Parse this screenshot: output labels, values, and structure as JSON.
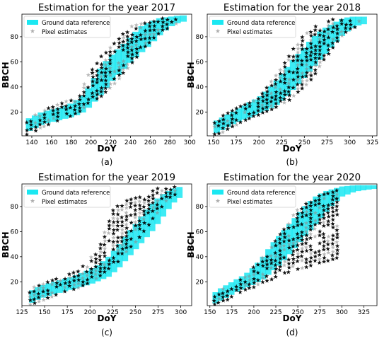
{
  "chart_data": [
    {
      "id": "a",
      "type": "scatter",
      "title": "Estimation for the year 2017",
      "caption": "(a)",
      "xlabel": "DoY",
      "ylabel": "BBCH",
      "xlim": [
        130,
        302
      ],
      "ylim": [
        1,
        98
      ],
      "xticks": [
        140,
        160,
        180,
        200,
        220,
        240,
        260,
        280,
        300
      ],
      "yticks": [
        20,
        40,
        60,
        80
      ],
      "legend_position": "top-left",
      "series": [
        {
          "name": "Ground data reference",
          "color": "#1be8f2",
          "band": [
            [
              134,
              4,
              14
            ],
            [
              140,
              6,
              16
            ],
            [
              150,
              10,
              20
            ],
            [
              160,
              12,
              22
            ],
            [
              170,
              14,
              24
            ],
            [
              180,
              16,
              27
            ],
            [
              190,
              19,
              32
            ],
            [
              198,
              24,
              40
            ],
            [
              205,
              30,
              50
            ],
            [
              212,
              36,
              58
            ],
            [
              220,
              44,
              65
            ],
            [
              230,
              52,
              72
            ],
            [
              240,
              60,
              80
            ],
            [
              250,
              67,
              88
            ],
            [
              260,
              74,
              92
            ],
            [
              270,
              82,
              95
            ],
            [
              280,
              88,
              96
            ],
            [
              290,
              92,
              97
            ]
          ]
        },
        {
          "name": "Pixel estimates",
          "color": "#000000",
          "cloud": [
            [
              135,
              2,
              14
            ],
            [
              142,
              4,
              17
            ],
            [
              150,
              8,
              22
            ],
            [
              160,
              11,
              24
            ],
            [
              170,
              14,
              27
            ],
            [
              180,
              17,
              31
            ],
            [
              190,
              21,
              40
            ],
            [
              197,
              27,
              50
            ],
            [
              205,
              30,
              60
            ],
            [
              213,
              34,
              68
            ],
            [
              220,
              40,
              74
            ],
            [
              230,
              48,
              82
            ],
            [
              240,
              58,
              88
            ],
            [
              250,
              68,
              92
            ],
            [
              260,
              76,
              94
            ],
            [
              270,
              84,
              95
            ],
            [
              280,
              88,
              96
            ],
            [
              290,
              92,
              95
            ]
          ]
        }
      ]
    },
    {
      "id": "b",
      "type": "scatter",
      "title": "Estimation for the year 2018",
      "caption": "(b)",
      "xlabel": "DoY",
      "ylabel": "BBCH",
      "xlim": [
        143,
        330
      ],
      "ylim": [
        1,
        98
      ],
      "xticks": [
        150,
        175,
        200,
        225,
        250,
        275,
        300,
        325
      ],
      "yticks": [
        20,
        40,
        60,
        80
      ],
      "legend_position": "top-left",
      "series": [
        {
          "name": "Ground data reference",
          "color": "#1be8f2",
          "band": [
            [
              150,
              2,
              12
            ],
            [
              160,
              6,
              16
            ],
            [
              170,
              10,
              20
            ],
            [
              180,
              13,
              24
            ],
            [
              190,
              16,
              28
            ],
            [
              200,
              19,
              32
            ],
            [
              210,
              22,
              38
            ],
            [
              220,
              26,
              46
            ],
            [
              230,
              32,
              55
            ],
            [
              240,
              40,
              64
            ],
            [
              250,
              48,
              72
            ],
            [
              260,
              56,
              80
            ],
            [
              270,
              64,
              86
            ],
            [
              280,
              72,
              90
            ],
            [
              290,
              80,
              94
            ],
            [
              300,
              86,
              96
            ],
            [
              312,
              90,
              96
            ]
          ]
        },
        {
          "name": "Pixel estimates",
          "color": "#000000",
          "cloud": [
            [
              151,
              2,
              12
            ],
            [
              160,
              4,
              18
            ],
            [
              170,
              8,
              22
            ],
            [
              180,
              12,
              26
            ],
            [
              190,
              15,
              30
            ],
            [
              200,
              18,
              34
            ],
            [
              210,
              21,
              42
            ],
            [
              220,
              24,
              52
            ],
            [
              230,
              28,
              62
            ],
            [
              240,
              34,
              74
            ],
            [
              250,
              40,
              82
            ],
            [
              260,
              48,
              88
            ],
            [
              270,
              60,
              92
            ],
            [
              280,
              70,
              94
            ],
            [
              290,
              80,
              95
            ],
            [
              300,
              86,
              96
            ],
            [
              312,
              90,
              95
            ]
          ]
        }
      ]
    },
    {
      "id": "c",
      "type": "scatter",
      "title": "Estimation for the year 2019",
      "caption": "(c)",
      "xlabel": "DoY",
      "ylabel": "BBCH",
      "xlim": [
        125,
        312
      ],
      "ylim": [
        1,
        98
      ],
      "xticks": [
        125,
        150,
        175,
        200,
        225,
        250,
        275,
        300
      ],
      "yticks": [
        20,
        40,
        60,
        80
      ],
      "legend_position": "top-left",
      "series": [
        {
          "name": "Ground data reference",
          "color": "#1be8f2",
          "band": [
            [
              133,
              2,
              12
            ],
            [
              140,
              5,
              15
            ],
            [
              150,
              8,
              18
            ],
            [
              160,
              10,
              20
            ],
            [
              170,
              12,
              22
            ],
            [
              180,
              14,
              24
            ],
            [
              190,
              16,
              27
            ],
            [
              200,
              18,
              30
            ],
            [
              210,
              21,
              34
            ],
            [
              220,
              24,
              40
            ],
            [
              230,
              30,
              48
            ],
            [
              240,
              38,
              58
            ],
            [
              250,
              46,
              66
            ],
            [
              260,
              54,
              76
            ],
            [
              270,
              62,
              84
            ],
            [
              280,
              72,
              90
            ],
            [
              290,
              82,
              94
            ],
            [
              300,
              88,
              96
            ]
          ]
        },
        {
          "name": "Pixel estimates",
          "color": "#000000",
          "cloud": [
            [
              134,
              2,
              14
            ],
            [
              142,
              4,
              18
            ],
            [
              150,
              6,
              22
            ],
            [
              160,
              9,
              24
            ],
            [
              170,
              12,
              26
            ],
            [
              180,
              14,
              28
            ],
            [
              190,
              16,
              32
            ],
            [
              200,
              20,
              40
            ],
            [
              210,
              24,
              48
            ],
            [
              220,
              30,
              70
            ],
            [
              228,
              34,
              80
            ],
            [
              236,
              40,
              84
            ],
            [
              245,
              48,
              86
            ],
            [
              255,
              56,
              90
            ],
            [
              265,
              66,
              94
            ],
            [
              275,
              76,
              95
            ],
            [
              285,
              86,
              96
            ],
            [
              295,
              90,
              96
            ]
          ]
        }
      ]
    },
    {
      "id": "d",
      "type": "scatter",
      "title": "Estimation for the year 2020",
      "caption": "(d)",
      "xlabel": "DoY",
      "ylabel": "BBCH",
      "xlim": [
        147,
        340
      ],
      "ylim": [
        1,
        98
      ],
      "xticks": [
        150,
        175,
        200,
        225,
        250,
        275,
        300,
        325
      ],
      "yticks": [
        20,
        40,
        60,
        80
      ],
      "legend_position": "top-left",
      "series": [
        {
          "name": "Ground data reference",
          "color": "#1be8f2",
          "band": [
            [
              153,
              2,
              10
            ],
            [
              160,
              4,
              14
            ],
            [
              170,
              8,
              18
            ],
            [
              180,
              12,
              22
            ],
            [
              190,
              15,
              26
            ],
            [
              200,
              18,
              32
            ],
            [
              210,
              22,
              40
            ],
            [
              220,
              28,
              50
            ],
            [
              230,
              34,
              58
            ],
            [
              240,
              42,
              66
            ],
            [
              250,
              50,
              74
            ],
            [
              260,
              58,
              82
            ],
            [
              270,
              66,
              88
            ],
            [
              280,
              74,
              92
            ],
            [
              290,
              82,
              94
            ],
            [
              300,
              88,
              96
            ],
            [
              315,
              92,
              97
            ],
            [
              335,
              94,
              97
            ]
          ]
        },
        {
          "name": "Pixel estimates",
          "color": "#000000",
          "cloud": [
            [
              155,
              2,
              10
            ],
            [
              162,
              4,
              14
            ],
            [
              170,
              6,
              18
            ],
            [
              180,
              10,
              22
            ],
            [
              190,
              14,
              26
            ],
            [
              200,
              16,
              32
            ],
            [
              210,
              20,
              40
            ],
            [
              220,
              22,
              50
            ],
            [
              230,
              26,
              58
            ],
            [
              240,
              28,
              70
            ],
            [
              250,
              30,
              78
            ],
            [
              260,
              32,
              84
            ],
            [
              270,
              34,
              88
            ],
            [
              280,
              36,
              90
            ],
            [
              290,
              38,
              93
            ],
            [
              298,
              40,
              95
            ]
          ]
        }
      ]
    }
  ]
}
